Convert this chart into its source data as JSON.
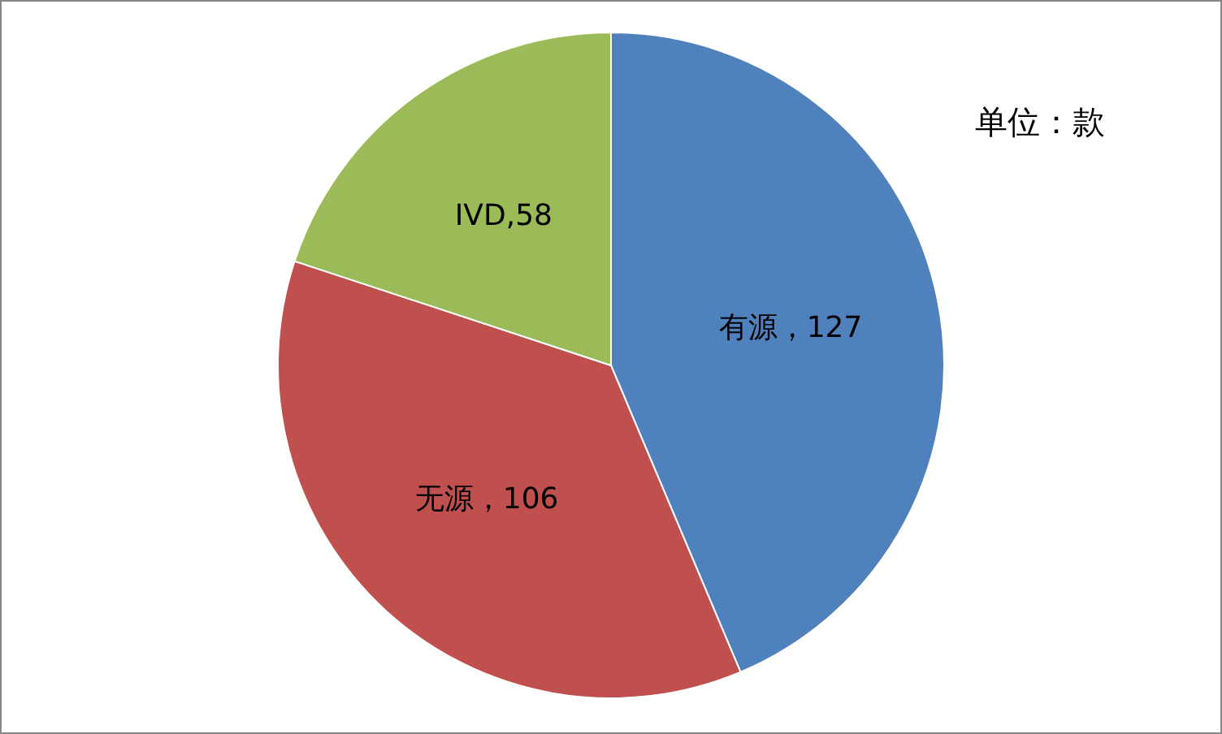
{
  "chart_data": {
    "type": "pie",
    "categories": [
      "有源",
      "无源",
      "IVD"
    ],
    "values": [
      127,
      106,
      58
    ],
    "colors": [
      "#4f81bd",
      "#c0504d",
      "#9bbb59"
    ],
    "value_labels": [
      "，127",
      "，106",
      ",58"
    ],
    "annotations": [
      "单位：款"
    ],
    "legend": false
  }
}
